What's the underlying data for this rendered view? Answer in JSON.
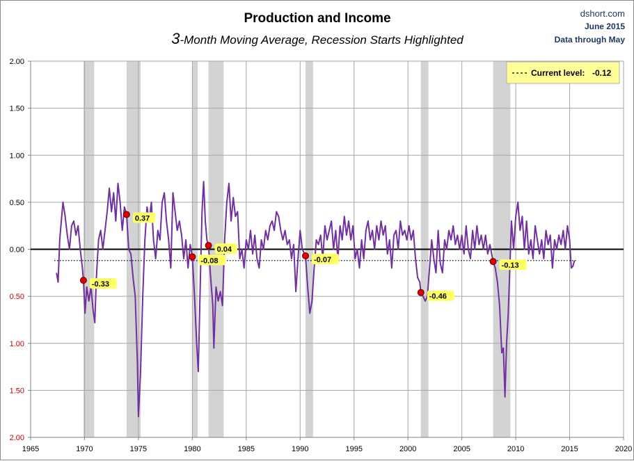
{
  "chart_data": {
    "type": "line",
    "title": "Production and Income",
    "subtitle_prefix": "3",
    "subtitle_rest": "-Month Moving Average, Recession Starts Highlighted",
    "source": [
      "dshort.com",
      "June 2015",
      "Data through May"
    ],
    "xlim": [
      1965,
      2020
    ],
    "ylim": [
      -2.0,
      2.0
    ],
    "x_ticks": [
      1965,
      1970,
      1975,
      1980,
      1985,
      1990,
      1995,
      2000,
      2005,
      2010,
      2015,
      2020
    ],
    "y_ticks": [
      {
        "value": 2.0,
        "label": "2.00"
      },
      {
        "value": 1.5,
        "label": "1.50"
      },
      {
        "value": 1.0,
        "label": "1.00"
      },
      {
        "value": 0.5,
        "label": "0.50"
      },
      {
        "value": 0.0,
        "label": "0.00"
      },
      {
        "value": -0.5,
        "label": "0.50"
      },
      {
        "value": -1.0,
        "label": "1.00"
      },
      {
        "value": -1.5,
        "label": "1.50"
      },
      {
        "value": -2.0,
        "label": "2.00"
      }
    ],
    "recessions": [
      [
        1969.9,
        1970.9
      ],
      [
        1973.9,
        1975.2
      ],
      [
        1980.0,
        1980.5
      ],
      [
        1981.5,
        1982.9
      ],
      [
        1990.5,
        1991.2
      ],
      [
        2001.2,
        2001.9
      ],
      [
        2007.9,
        2009.5
      ]
    ],
    "recession_markers": [
      {
        "x": 1969.9,
        "y": -0.33,
        "label": "-0.33"
      },
      {
        "x": 1973.9,
        "y": 0.37,
        "label": "0.37"
      },
      {
        "x": 1980.0,
        "y": -0.08,
        "label": "-0.08"
      },
      {
        "x": 1981.5,
        "y": 0.04,
        "label": "0.04"
      },
      {
        "x": 1990.5,
        "y": -0.07,
        "label": "-0.07"
      },
      {
        "x": 2001.2,
        "y": -0.46,
        "label": "-0.46"
      },
      {
        "x": 2007.9,
        "y": -0.13,
        "label": "-0.13"
      }
    ],
    "current_level": {
      "value": -0.12,
      "label": "Current level:",
      "value_label": "-0.12"
    },
    "series": [
      {
        "name": "3-Month Moving Average",
        "color": "#7030a0",
        "points": [
          [
            1967.4,
            -0.25
          ],
          [
            1967.55,
            -0.35
          ],
          [
            1967.7,
            0.1
          ],
          [
            1967.85,
            0.3
          ],
          [
            1968.0,
            0.5
          ],
          [
            1968.2,
            0.35
          ],
          [
            1968.4,
            0.15
          ],
          [
            1968.6,
            0.0
          ],
          [
            1968.8,
            0.25
          ],
          [
            1969.0,
            0.3
          ],
          [
            1969.2,
            0.15
          ],
          [
            1969.4,
            0.25
          ],
          [
            1969.6,
            0.0
          ],
          [
            1969.8,
            -0.2
          ],
          [
            1969.9,
            -0.33
          ],
          [
            1970.05,
            -0.68
          ],
          [
            1970.2,
            -0.4
          ],
          [
            1970.4,
            -0.55
          ],
          [
            1970.6,
            -0.4
          ],
          [
            1970.8,
            -0.65
          ],
          [
            1970.95,
            -0.78
          ],
          [
            1971.1,
            -0.3
          ],
          [
            1971.3,
            0.1
          ],
          [
            1971.5,
            0.2
          ],
          [
            1971.7,
            0.0
          ],
          [
            1971.9,
            0.2
          ],
          [
            1972.1,
            0.4
          ],
          [
            1972.3,
            0.65
          ],
          [
            1972.5,
            0.4
          ],
          [
            1972.7,
            0.6
          ],
          [
            1972.9,
            0.3
          ],
          [
            1973.1,
            0.7
          ],
          [
            1973.3,
            0.5
          ],
          [
            1973.5,
            0.2
          ],
          [
            1973.7,
            0.45
          ],
          [
            1973.9,
            0.37
          ],
          [
            1974.1,
            0.0
          ],
          [
            1974.3,
            -0.05
          ],
          [
            1974.5,
            -0.3
          ],
          [
            1974.7,
            -0.5
          ],
          [
            1974.9,
            -1.2
          ],
          [
            1975.0,
            -1.78
          ],
          [
            1975.2,
            -1.3
          ],
          [
            1975.4,
            -0.5
          ],
          [
            1975.6,
            0.1
          ],
          [
            1975.8,
            0.45
          ],
          [
            1976.0,
            0.3
          ],
          [
            1976.2,
            0.5
          ],
          [
            1976.4,
            0.1
          ],
          [
            1976.6,
            -0.1
          ],
          [
            1976.8,
            0.2
          ],
          [
            1977.0,
            0.1
          ],
          [
            1977.2,
            0.5
          ],
          [
            1977.4,
            0.6
          ],
          [
            1977.6,
            0.3
          ],
          [
            1977.8,
            0.1
          ],
          [
            1978.0,
            -0.2
          ],
          [
            1978.2,
            0.6
          ],
          [
            1978.4,
            0.4
          ],
          [
            1978.6,
            0.2
          ],
          [
            1978.8,
            0.3
          ],
          [
            1979.0,
            0.15
          ],
          [
            1979.2,
            -0.1
          ],
          [
            1979.4,
            0.1
          ],
          [
            1979.6,
            -0.2
          ],
          [
            1979.8,
            0.05
          ],
          [
            1980.0,
            -0.08
          ],
          [
            1980.2,
            -0.5
          ],
          [
            1980.4,
            -1.0
          ],
          [
            1980.55,
            -1.3
          ],
          [
            1980.75,
            -0.3
          ],
          [
            1980.9,
            0.4
          ],
          [
            1981.05,
            0.72
          ],
          [
            1981.2,
            0.3
          ],
          [
            1981.35,
            0.1
          ],
          [
            1981.5,
            0.04
          ],
          [
            1981.7,
            -0.3
          ],
          [
            1981.9,
            -0.6
          ],
          [
            1982.0,
            -1.05
          ],
          [
            1982.2,
            -0.4
          ],
          [
            1982.4,
            -0.55
          ],
          [
            1982.6,
            -0.45
          ],
          [
            1982.8,
            -0.6
          ],
          [
            1983.0,
            0.1
          ],
          [
            1983.2,
            0.5
          ],
          [
            1983.4,
            0.7
          ],
          [
            1983.6,
            0.3
          ],
          [
            1983.8,
            0.55
          ],
          [
            1984.0,
            0.35
          ],
          [
            1984.2,
            0.4
          ],
          [
            1984.4,
            -0.1
          ],
          [
            1984.6,
            0.0
          ],
          [
            1984.8,
            -0.2
          ],
          [
            1985.0,
            0.1
          ],
          [
            1985.2,
            0.0
          ],
          [
            1985.4,
            0.2
          ],
          [
            1985.6,
            -0.05
          ],
          [
            1985.8,
            0.15
          ],
          [
            1986.0,
            -0.1
          ],
          [
            1986.2,
            -0.2
          ],
          [
            1986.4,
            0.1
          ],
          [
            1986.6,
            0.0
          ],
          [
            1986.8,
            0.2
          ],
          [
            1987.0,
            0.1
          ],
          [
            1987.2,
            0.25
          ],
          [
            1987.4,
            0.3
          ],
          [
            1987.6,
            0.2
          ],
          [
            1987.8,
            0.4
          ],
          [
            1988.0,
            0.35
          ],
          [
            1988.2,
            0.2
          ],
          [
            1988.4,
            0.1
          ],
          [
            1988.6,
            0.2
          ],
          [
            1988.8,
            0.05
          ],
          [
            1989.0,
            0.1
          ],
          [
            1989.2,
            -0.1
          ],
          [
            1989.4,
            0.05
          ],
          [
            1989.6,
            -0.45
          ],
          [
            1989.8,
            -0.1
          ],
          [
            1990.0,
            0.2
          ],
          [
            1990.2,
            0.0
          ],
          [
            1990.5,
            -0.07
          ],
          [
            1990.7,
            -0.4
          ],
          [
            1990.9,
            -0.68
          ],
          [
            1991.1,
            -0.55
          ],
          [
            1991.3,
            -0.2
          ],
          [
            1991.5,
            0.1
          ],
          [
            1991.7,
            0.05
          ],
          [
            1991.9,
            0.15
          ],
          [
            1992.1,
            -0.1
          ],
          [
            1992.3,
            0.25
          ],
          [
            1992.5,
            0.1
          ],
          [
            1992.7,
            0.2
          ],
          [
            1992.9,
            0.3
          ],
          [
            1993.1,
            0.0
          ],
          [
            1993.3,
            0.2
          ],
          [
            1993.5,
            -0.1
          ],
          [
            1993.7,
            0.25
          ],
          [
            1993.9,
            0.1
          ],
          [
            1994.1,
            0.35
          ],
          [
            1994.3,
            0.15
          ],
          [
            1994.5,
            0.3
          ],
          [
            1994.7,
            0.1
          ],
          [
            1994.9,
            0.25
          ],
          [
            1995.1,
            -0.1
          ],
          [
            1995.3,
            0.0
          ],
          [
            1995.5,
            -0.2
          ],
          [
            1995.7,
            0.1
          ],
          [
            1995.9,
            -0.1
          ],
          [
            1996.1,
            0.2
          ],
          [
            1996.3,
            0.3
          ],
          [
            1996.5,
            0.1
          ],
          [
            1996.7,
            0.2
          ],
          [
            1996.9,
            0.0
          ],
          [
            1997.1,
            0.25
          ],
          [
            1997.3,
            0.1
          ],
          [
            1997.5,
            0.3
          ],
          [
            1997.7,
            0.15
          ],
          [
            1997.9,
            0.25
          ],
          [
            1998.1,
            -0.05
          ],
          [
            1998.3,
            0.1
          ],
          [
            1998.5,
            -0.2
          ],
          [
            1998.7,
            0.15
          ],
          [
            1998.9,
            0.2
          ],
          [
            1999.1,
            0.0
          ],
          [
            1999.3,
            0.3
          ],
          [
            1999.5,
            0.15
          ],
          [
            1999.7,
            0.2
          ],
          [
            1999.9,
            0.1
          ],
          [
            2000.1,
            0.25
          ],
          [
            2000.3,
            0.1
          ],
          [
            2000.5,
            0.2
          ],
          [
            2000.7,
            -0.1
          ],
          [
            2000.9,
            -0.3
          ],
          [
            2001.1,
            -0.35
          ],
          [
            2001.2,
            -0.46
          ],
          [
            2001.4,
            -0.5
          ],
          [
            2001.6,
            -0.55
          ],
          [
            2001.8,
            -0.5
          ],
          [
            2002.0,
            -0.2
          ],
          [
            2002.2,
            0.1
          ],
          [
            2002.4,
            -0.1
          ],
          [
            2002.6,
            -0.25
          ],
          [
            2002.8,
            0.2
          ],
          [
            2003.0,
            -0.15
          ],
          [
            2003.2,
            -0.25
          ],
          [
            2003.4,
            0.1
          ],
          [
            2003.6,
            0.0
          ],
          [
            2003.8,
            0.2
          ],
          [
            2004.0,
            0.1
          ],
          [
            2004.2,
            0.25
          ],
          [
            2004.4,
            0.05
          ],
          [
            2004.6,
            0.15
          ],
          [
            2004.8,
            0.0
          ],
          [
            2005.0,
            0.15
          ],
          [
            2005.2,
            -0.05
          ],
          [
            2005.4,
            0.25
          ],
          [
            2005.6,
            0.0
          ],
          [
            2005.8,
            -0.1
          ],
          [
            2006.0,
            0.2
          ],
          [
            2006.2,
            0.0
          ],
          [
            2006.4,
            0.25
          ],
          [
            2006.6,
            0.05
          ],
          [
            2006.8,
            0.15
          ],
          [
            2007.0,
            0.0
          ],
          [
            2007.2,
            0.15
          ],
          [
            2007.4,
            -0.05
          ],
          [
            2007.6,
            0.05
          ],
          [
            2007.9,
            -0.13
          ],
          [
            2008.1,
            -0.2
          ],
          [
            2008.3,
            -0.35
          ],
          [
            2008.5,
            -0.6
          ],
          [
            2008.7,
            -1.1
          ],
          [
            2008.85,
            -1.05
          ],
          [
            2009.0,
            -1.57
          ],
          [
            2009.15,
            -1.0
          ],
          [
            2009.3,
            -0.7
          ],
          [
            2009.45,
            -0.2
          ],
          [
            2009.6,
            0.3
          ],
          [
            2009.8,
            0.0
          ],
          [
            2010.0,
            0.35
          ],
          [
            2010.2,
            0.5
          ],
          [
            2010.4,
            0.2
          ],
          [
            2010.6,
            0.35
          ],
          [
            2010.8,
            0.0
          ],
          [
            2011.0,
            0.3
          ],
          [
            2011.2,
            -0.05
          ],
          [
            2011.4,
            0.1
          ],
          [
            2011.6,
            -0.1
          ],
          [
            2011.8,
            0.25
          ],
          [
            2012.0,
            0.1
          ],
          [
            2012.2,
            -0.05
          ],
          [
            2012.4,
            0.1
          ],
          [
            2012.6,
            -0.1
          ],
          [
            2012.8,
            0.2
          ],
          [
            2013.0,
            0.05
          ],
          [
            2013.2,
            0.15
          ],
          [
            2013.4,
            -0.2
          ],
          [
            2013.6,
            0.1
          ],
          [
            2013.8,
            0.0
          ],
          [
            2014.0,
            0.15
          ],
          [
            2014.2,
            0.05
          ],
          [
            2014.4,
            0.2
          ],
          [
            2014.6,
            0.0
          ],
          [
            2014.8,
            0.25
          ],
          [
            2015.0,
            0.1
          ],
          [
            2015.15,
            -0.2
          ],
          [
            2015.3,
            -0.18
          ],
          [
            2015.45,
            -0.12
          ]
        ]
      }
    ]
  },
  "colors": {
    "series": "#7030a0",
    "recession": "#d3d3d3",
    "grid": "#a6a6a6",
    "marker": "#e00000",
    "label_bg": "#ffff66",
    "negative_tick": "#c00000"
  }
}
